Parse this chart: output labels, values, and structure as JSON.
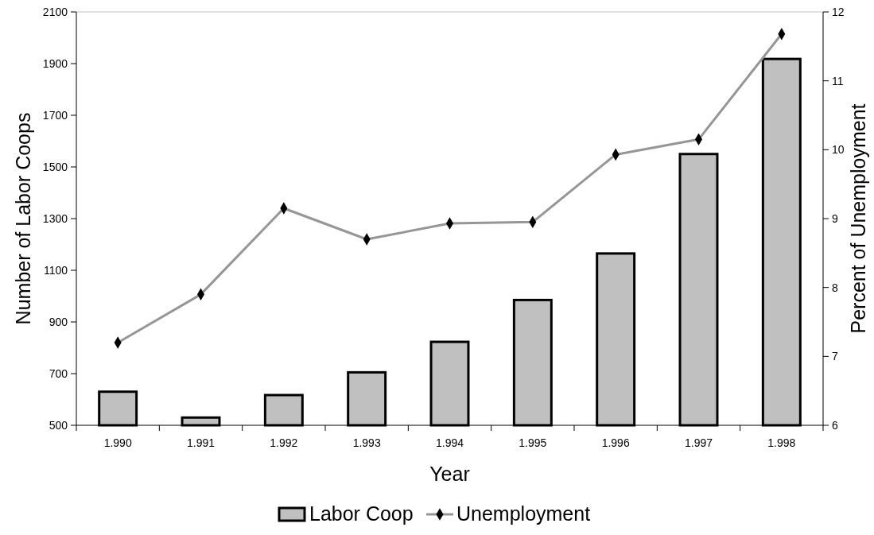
{
  "chart_data": {
    "type": "bar",
    "xlabel": "Year",
    "ylabel": "Number of Labor Coops",
    "y2label": "Percent of Unemployment",
    "categories": [
      "1.990",
      "1.991",
      "1.992",
      "1.993",
      "1.994",
      "1.995",
      "1.996",
      "1.997",
      "1.998"
    ],
    "series": [
      {
        "name": "Labor Coop",
        "color": "#c0c0c0",
        "values": [
          630,
          530,
          617,
          705,
          823,
          985,
          1165,
          1550,
          1918
        ]
      },
      {
        "name": "Unemployment",
        "type": "line",
        "axis": "y2",
        "color": "#969696",
        "marker": "diamond",
        "values": [
          7.2,
          7.9,
          9.15,
          8.7,
          8.93,
          8.95,
          9.93,
          10.15,
          11.68
        ]
      }
    ],
    "ylim": [
      500,
      2100
    ],
    "yticks": [
      500,
      700,
      900,
      1100,
      1300,
      1500,
      1700,
      1900,
      2100
    ],
    "y2lim": [
      6,
      12
    ],
    "y2ticks": [
      6,
      7,
      8,
      9,
      10,
      11,
      12
    ],
    "grid": false,
    "legend": "bottom"
  }
}
